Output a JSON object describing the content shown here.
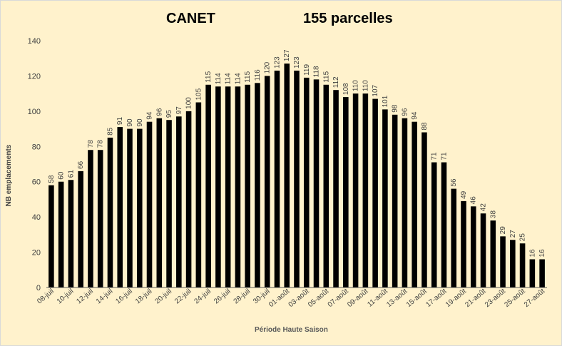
{
  "chart_data": {
    "type": "bar",
    "title_left": "CANET",
    "title_right": "155 parcelles",
    "xlabel": "Période Haute Saison",
    "ylabel": "NB emplacements",
    "ylim": [
      0,
      140
    ],
    "ytick_step": 20,
    "grid": false,
    "bar_color": "#000000",
    "background_color": "#fff2cc",
    "x_tick_labels": [
      "08-juil",
      "10-juil",
      "12-juil",
      "14-juil",
      "16-juil",
      "18-juil",
      "20-juil",
      "22-juil",
      "24-juil",
      "26-juil",
      "28-juil",
      "30-juil",
      "01-août",
      "03-août",
      "05-août",
      "07-août",
      "09-août",
      "11-août",
      "13-août",
      "15-août",
      "17-août",
      "19-août",
      "21-août",
      "23-août",
      "25-août",
      "27-août"
    ],
    "values": [
      58,
      60,
      61,
      66,
      78,
      78,
      85,
      91,
      90,
      90,
      94,
      96,
      95,
      97,
      100,
      105,
      115,
      114,
      114,
      114,
      115,
      116,
      120,
      123,
      127,
      123,
      119,
      118,
      115,
      112,
      108,
      110,
      110,
      107,
      101,
      98,
      96,
      94,
      88,
      71,
      71,
      56,
      49,
      46,
      42,
      38,
      29,
      27,
      25,
      16,
      16
    ]
  }
}
